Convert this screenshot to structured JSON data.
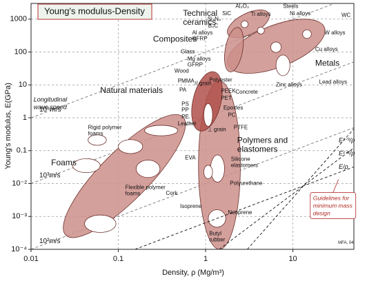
{
  "chart_data": {
    "type": "ashby",
    "title": "Young's modulus-Density",
    "x_label": "Density, ρ (Mg/m³)",
    "y_label": "Young's modulus, E(GPa)",
    "log_x": true,
    "log_y": true,
    "grid": true,
    "xlim": [
      0.01,
      50
    ],
    "ylim": [
      0.0001,
      3000
    ],
    "xticks": [
      0.01,
      0.1,
      1,
      10
    ],
    "yticks": [
      {
        "value": 0.0001,
        "label": "10⁻⁴"
      },
      {
        "value": 0.001,
        "label": "10⁻³"
      },
      {
        "value": 0.01,
        "label": "10⁻²"
      },
      0.1,
      1,
      10,
      100,
      1000
    ],
    "regions": [
      {
        "from": [
          0.025,
          0.00027
        ],
        "to": [
          0.55,
          1.06
        ],
        "width": 0.28,
        "color": "#cc8f8b"
      },
      {
        "from": [
          1.44,
          0.0001
        ],
        "to": [
          1.44,
          13
        ],
        "width": 0.24,
        "color": "#cc8f8b"
      },
      {
        "from": [
          1.8,
          40
        ],
        "to": [
          23,
          560
        ],
        "width": 0.24,
        "color": "#cc8f8b"
      },
      {
        "from": [
          1.8,
          350
        ],
        "to": [
          5.3,
          1480
        ],
        "width": 0.12,
        "color": "#cc8f8b"
      },
      {
        "from": [
          1.9,
          25
        ],
        "to": [
          2.35,
          560
        ],
        "width": 0.1,
        "color": "#cc8f8b"
      },
      {
        "from": [
          0.86,
          0.4
        ],
        "to": [
          1.25,
          25
        ],
        "width": 0.16,
        "color": "#b2514b"
      },
      {
        "from": [
          0.041,
          0.0006
        ],
        "to": [
          0.094,
          0.0006
        ],
        "width": 0.1,
        "color": "#ffffff"
      },
      {
        "from": [
          0.03,
          0.035
        ],
        "to": [
          0.062,
          0.035
        ],
        "width": 0.08,
        "color": "#ffffff"
      },
      {
        "from": [
          0.1,
          0.133
        ],
        "to": [
          0.19,
          0.133
        ],
        "width": 0.08,
        "color": "#ffffff"
      },
      {
        "from": [
          0.16,
          0.028
        ],
        "to": [
          0.3,
          0.028
        ],
        "width": 0.1,
        "color": "#ffffff"
      },
      {
        "from": [
          0.045,
          0.21
        ],
        "to": [
          0.073,
          0.21
        ],
        "width": 0.06,
        "color": "#ffffff"
      },
      {
        "from": [
          0.2,
          0.41
        ],
        "to": [
          0.48,
          0.41
        ],
        "width": 0.06,
        "color": "#ffffff"
      },
      {
        "from": [
          1.37,
          0.011
        ],
        "to": [
          1.37,
          0.074
        ],
        "width": 0.08,
        "color": "#ffffff"
      },
      {
        "from": [
          1.35,
          0.00047
        ],
        "to": [
          1.35,
          0.0016
        ],
        "width": 0.1,
        "color": "#ffffff"
      },
      {
        "from": [
          1.07,
          0.014
        ],
        "to": [
          1.07,
          0.036
        ],
        "width": 0.05,
        "color": "#ffffff"
      },
      {
        "from": [
          7.7,
          19
        ],
        "to": [
          7.7,
          81
        ],
        "width": 0.08,
        "color": "#ffffff"
      },
      {
        "from": [
          6.4,
          140
        ],
        "to": [
          6.4,
          140
        ],
        "width": 0.06,
        "color": "#ffffff"
      },
      {
        "from": [
          14.5,
          350
        ],
        "to": [
          14.5,
          350
        ],
        "width": 0.05,
        "color": "#ffffff"
      },
      {
        "from": [
          4.3,
          450
        ],
        "to": [
          4.3,
          450
        ],
        "width": 0.04,
        "color": "#ffffff"
      },
      {
        "from": [
          2.8,
          700
        ],
        "to": [
          2.8,
          700
        ],
        "width": 0.04,
        "color": "#ffffff"
      },
      {
        "from": [
          1.07,
          0.55
        ],
        "to": [
          1.07,
          2.7
        ],
        "width": 0.05,
        "color": "#ffffff"
      }
    ],
    "wave_speed_lines": [
      {
        "label": "10⁴m/s",
        "ratio": 100
      },
      {
        "label": "10³m/s",
        "ratio": 1
      },
      {
        "label": "10²m/s",
        "ratio": 0.01
      }
    ],
    "guideline_origin": [
      13.2,
      0.0085
    ],
    "guidelines": [
      {
        "label": "E/ρ",
        "exponent": 1
      },
      {
        "label": "E¹ᐟ²/ρ",
        "exponent": 2
      },
      {
        "label": "E¹ᐟ³/ρ",
        "exponent": 3
      }
    ],
    "annotations": [
      {
        "lines": [
          "Technical",
          "ceramics"
        ],
        "x": 0.55,
        "y": 1480,
        "kind": "family"
      },
      {
        "lines": [
          "Composites"
        ],
        "x": 0.25,
        "y": 240,
        "kind": "family"
      },
      {
        "lines": [
          "Metals"
        ],
        "x": 18,
        "y": 45,
        "kind": "family"
      },
      {
        "lines": [
          "Natural materials"
        ],
        "x": 0.062,
        "y": 6.6,
        "kind": "family"
      },
      {
        "lines": [
          "Polymers and",
          "elastomers"
        ],
        "x": 2.3,
        "y": 0.2,
        "kind": "family"
      },
      {
        "lines": [
          "Foams"
        ],
        "x": 0.017,
        "y": 0.042,
        "kind": "family"
      },
      {
        "lines": [
          "Al₂O₃"
        ],
        "x": 2.2,
        "y": 2400,
        "kind": "material"
      },
      {
        "lines": [
          "SiC"
        ],
        "x": 1.55,
        "y": 1480,
        "kind": "material"
      },
      {
        "lines": [
          "Si₃N₄"
        ],
        "x": 1.05,
        "y": 1000,
        "kind": "material"
      },
      {
        "lines": [
          "B₄C"
        ],
        "x": 1.07,
        "y": 620,
        "kind": "material"
      },
      {
        "lines": [
          "Ti alloys"
        ],
        "x": 3.3,
        "y": 1400,
        "kind": "material"
      },
      {
        "lines": [
          "Steels"
        ],
        "x": 7.7,
        "y": 2400,
        "kind": "material"
      },
      {
        "lines": [
          "Ni alloys"
        ],
        "x": 9.2,
        "y": 1480,
        "kind": "material"
      },
      {
        "lines": [
          "WC"
        ],
        "x": 36,
        "y": 1300,
        "kind": "material"
      },
      {
        "lines": [
          "W alloys"
        ],
        "x": 23,
        "y": 380,
        "kind": "material"
      },
      {
        "lines": [
          "Cu alloys"
        ],
        "x": 18,
        "y": 120,
        "kind": "material"
      },
      {
        "lines": [
          "Al alloys"
        ],
        "x": 0.7,
        "y": 380,
        "kind": "material"
      },
      {
        "lines": [
          "GFRP"
        ],
        "x": 0.7,
        "y": 250,
        "kind": "material"
      },
      {
        "lines": [
          "Glass"
        ],
        "x": 0.52,
        "y": 100,
        "kind": "material"
      },
      {
        "lines": [
          "Mg alloys"
        ],
        "x": 0.62,
        "y": 60,
        "kind": "material"
      },
      {
        "lines": [
          "GFRP"
        ],
        "x": 0.62,
        "y": 40,
        "kind": "material"
      },
      {
        "lines": [
          "Zinc alloys"
        ],
        "x": 6.4,
        "y": 10,
        "kind": "material"
      },
      {
        "lines": [
          "Lead alloys"
        ],
        "x": 20,
        "y": 12,
        "kind": "material"
      },
      {
        "lines": [
          "Concrete"
        ],
        "x": 2.2,
        "y": 6,
        "kind": "material"
      },
      {
        "lines": [
          "Wood"
        ],
        "x": 0.44,
        "y": 26,
        "kind": "material"
      },
      {
        "lines": [
          "Polyester"
        ],
        "x": 1.1,
        "y": 14,
        "kind": "material"
      },
      {
        "lines": [
          "PMMA"
        ],
        "x": 0.48,
        "y": 13,
        "kind": "material"
      },
      {
        "lines": [
          "PA"
        ],
        "x": 0.5,
        "y": 7,
        "kind": "material"
      },
      {
        "lines": [
          "PEEK"
        ],
        "x": 1.5,
        "y": 6.4,
        "kind": "material"
      },
      {
        "lines": [
          "PET"
        ],
        "x": 1.5,
        "y": 3.9,
        "kind": "material"
      },
      {
        "lines": [
          "PS"
        ],
        "x": 0.53,
        "y": 2.6,
        "kind": "material"
      },
      {
        "lines": [
          "PP"
        ],
        "x": 0.53,
        "y": 1.7,
        "kind": "material"
      },
      {
        "lines": [
          "PE"
        ],
        "x": 0.53,
        "y": 1.06,
        "kind": "material"
      },
      {
        "lines": [
          "Epoxies"
        ],
        "x": 1.6,
        "y": 2,
        "kind": "material"
      },
      {
        "lines": [
          "PC"
        ],
        "x": 1.8,
        "y": 1.2,
        "kind": "material"
      },
      {
        "lines": [
          "Leather"
        ],
        "x": 0.48,
        "y": 0.65,
        "kind": "material"
      },
      {
        "lines": [
          "PTFE"
        ],
        "x": 2.1,
        "y": 0.5,
        "kind": "material"
      },
      {
        "lines": [
          "// grain"
        ],
        "x": 0.75,
        "y": 11,
        "kind": "material"
      },
      {
        "lines": [
          "⊥ grain"
        ],
        "x": 1.05,
        "y": 0.43,
        "kind": "material"
      },
      {
        "lines": [
          "Rigid polymer",
          "foams"
        ],
        "x": 0.045,
        "y": 0.5,
        "kind": "material"
      },
      {
        "lines": [
          "Cork"
        ],
        "x": 0.35,
        "y": 0.005,
        "kind": "material"
      },
      {
        "lines": [
          "Flexible polymer",
          "foams"
        ],
        "x": 0.12,
        "y": 0.0075,
        "kind": "material"
      },
      {
        "lines": [
          "EVA"
        ],
        "x": 0.58,
        "y": 0.06,
        "kind": "material"
      },
      {
        "lines": [
          "Silicone",
          "elastomers"
        ],
        "x": 1.95,
        "y": 0.055,
        "kind": "material"
      },
      {
        "lines": [
          "Polyurethane"
        ],
        "x": 1.9,
        "y": 0.01,
        "kind": "material"
      },
      {
        "lines": [
          "Isoprene"
        ],
        "x": 0.51,
        "y": 0.002,
        "kind": "material"
      },
      {
        "lines": [
          "Neoprene"
        ],
        "x": 1.8,
        "y": 0.0013,
        "kind": "material"
      },
      {
        "lines": [
          "Butyl",
          "rubber"
        ],
        "x": 1.1,
        "y": 0.0003,
        "kind": "material"
      },
      {
        "lines": [
          "Longitudinal",
          "wave speed"
        ],
        "x": 0.0107,
        "y": 3.5,
        "kind": "note"
      },
      {
        "lines": [
          "MFA, 04"
        ],
        "x": 33,
        "y": 0.00016,
        "kind": "tiny"
      },
      {
        "lines": [
          "Guidelines for",
          "minimum mass",
          "design"
        ],
        "x": 17,
        "y": 0.0035,
        "kind": "guide"
      }
    ]
  }
}
